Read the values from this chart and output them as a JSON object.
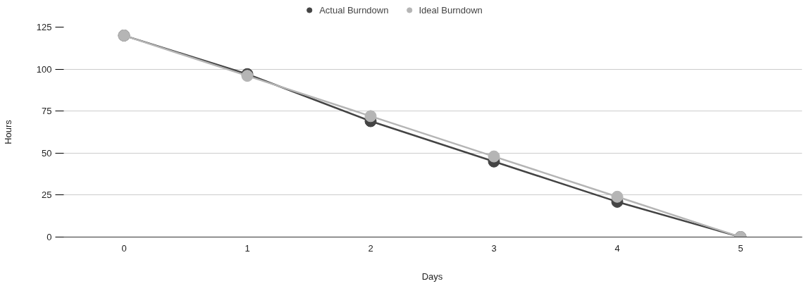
{
  "chart_data": {
    "type": "line",
    "xlabel": "Days",
    "ylabel": "Hours",
    "x": [
      0,
      1,
      2,
      3,
      4,
      5
    ],
    "series": [
      {
        "name": "Actual Burndown",
        "color": "#444444",
        "values": [
          120,
          97,
          69,
          45,
          21,
          0
        ]
      },
      {
        "name": "Ideal Burndown",
        "color": "#b5b5b5",
        "values": [
          120,
          96,
          72,
          48,
          24,
          0
        ]
      }
    ],
    "xlim": [
      -0.5,
      5.5
    ],
    "xticks": [
      0,
      1,
      2,
      3,
      4,
      5
    ],
    "ylim": [
      0,
      125
    ],
    "yticks": [
      0,
      25,
      50,
      75,
      100,
      125
    ],
    "grid": "y",
    "legend": "top",
    "marker": "circle",
    "line_style": "solid"
  }
}
